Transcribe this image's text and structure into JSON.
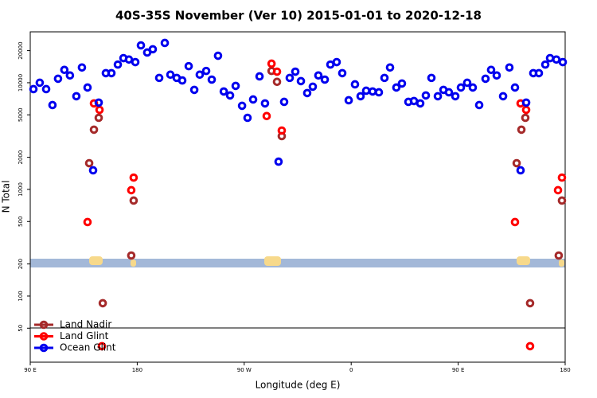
{
  "chart_data": {
    "type": "scatter",
    "title": "40S-35S November (Ver 10)   2015-01-01 to 2020-12-18",
    "xlabel": "Longitude (deg E)",
    "ylabel": "N Total",
    "xlim": [
      90,
      540
    ],
    "xticks": [
      {
        "value": 90,
        "label": "90 E"
      },
      {
        "value": 180,
        "label": "180"
      },
      {
        "value": 270,
        "label": "90 W"
      },
      {
        "value": 360,
        "label": "0"
      },
      {
        "value": 450,
        "label": "90 E"
      },
      {
        "value": 540,
        "label": "180"
      }
    ],
    "ylim": [
      24,
      30000
    ],
    "yscale": "log",
    "yticks": [
      50,
      100,
      200,
      500,
      1000,
      2000,
      5000,
      10000,
      20000
    ],
    "legend": "lower left",
    "series": [
      {
        "name": "Land Nadir",
        "color": "#a52a2a",
        "x": [
          139.6,
          143.6,
          147.6,
          151,
          175,
          177,
          293,
          297.6,
          301.6,
          499.2,
          503.2,
          506.5,
          510.5,
          534.6,
          537.3
        ],
        "values": [
          1760,
          3630,
          4690,
          85.7,
          240,
          786,
          12900,
          10200,
          3160,
          1760,
          3630,
          4690,
          85.7,
          240,
          786
        ]
      },
      {
        "name": "Land Glint",
        "color": "#ff0000",
        "x": [
          138.2,
          143.6,
          148.3,
          175,
          177,
          293,
          297.6,
          288.9,
          301.6,
          497.8,
          502.5,
          507.2,
          534,
          537.3,
          150.3,
          510.5
        ],
        "values": [
          494,
          6400,
          5570,
          983,
          1290,
          15100,
          12700,
          4870,
          3560,
          494,
          6400,
          5570,
          983,
          1290,
          33.9,
          33.9
        ]
      },
      {
        "name": "Ocean Glint",
        "color": "#0000ee",
        "x": [
          92.7,
          98,
          103.4,
          108.7,
          113.4,
          118.7,
          123.4,
          128.8,
          133.5,
          138.2,
          142.9,
          147.6,
          153.6,
          158.3,
          163.7,
          168.4,
          173,
          178.4,
          183.1,
          188.4,
          193.1,
          198.5,
          203.2,
          207.9,
          213.2,
          217.9,
          223.3,
          228,
          232.6,
          238,
          242.7,
          248,
          252.8,
          258.1,
          262.8,
          268.2,
          272.8,
          277.5,
          282.9,
          287.5,
          298.9,
          303.6,
          308.3,
          313,
          317.7,
          323,
          327.7,
          332.4,
          337.8,
          342.5,
          347.8,
          352.5,
          357.9,
          363.2,
          367.9,
          372.6,
          378,
          383.3,
          388,
          392.7,
          398,
          402.7,
          408.1,
          412.8,
          418.1,
          422.8,
          427.5,
          432.9,
          437.6,
          442.2,
          447.6,
          452.3,
          457.6,
          462.3,
          467.7,
          473,
          477.7,
          482.4,
          487.8,
          493.1,
          497.8,
          502.5,
          507.2,
          513.2,
          517.9,
          523.3,
          527.3,
          532.6,
          538
        ],
        "values": [
          8710,
          10000,
          8710,
          6180,
          10900,
          13200,
          11700,
          7470,
          13900,
          9020,
          1510,
          6510,
          12300,
          12300,
          14800,
          17000,
          16500,
          15600,
          22400,
          19200,
          20600,
          11100,
          23600,
          11900,
          11100,
          10500,
          14300,
          8570,
          11900,
          12900,
          10700,
          17900,
          8280,
          7600,
          9340,
          6080,
          4690,
          6970,
          11470,
          6400,
          1820,
          6620,
          11100,
          12700,
          10350,
          8000,
          9180,
          11700,
          10700,
          14800,
          15600,
          12300,
          6850,
          9660,
          7470,
          8420,
          8280,
          8130,
          11100,
          13900,
          9020,
          9830,
          6620,
          6740,
          6400,
          7600,
          11100,
          7470,
          8570,
          8130,
          7470,
          9020,
          10000,
          9020,
          6180,
          10900,
          13200,
          11700,
          7470,
          13900,
          9020,
          1510,
          6510,
          12300,
          12300,
          14800,
          17000,
          16500,
          15600
        ]
      }
    ]
  }
}
